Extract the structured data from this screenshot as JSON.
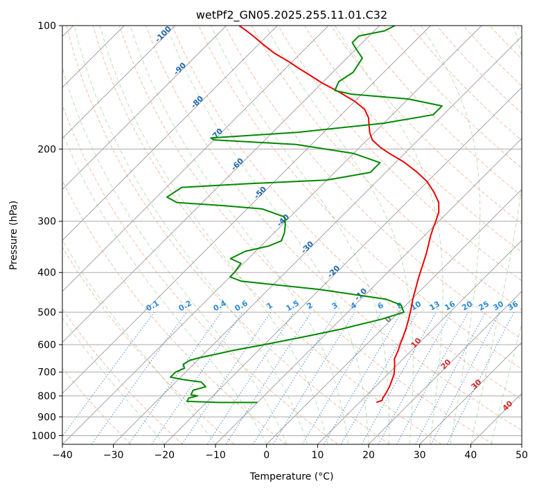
{
  "chart_data": {
    "type": "line",
    "title": "wetPf2_GN05.2025.255.11.01.C32",
    "xlabel": "Temperature (°C)",
    "ylabel": "Pressure (hPa)",
    "xlim": [
      -40,
      50
    ],
    "ylim": [
      1050,
      100
    ],
    "yscale": "log",
    "grid": true,
    "x_ticks": [
      "−40",
      "−30",
      "−20",
      "−10",
      "0",
      "10",
      "20",
      "30",
      "40",
      "50"
    ],
    "y_ticks": [
      {
        "value": 100,
        "label": "100"
      },
      {
        "value": 200,
        "label": "200"
      },
      {
        "value": 300,
        "label": "300"
      },
      {
        "value": 400,
        "label": "400"
      },
      {
        "value": 500,
        "label": "500"
      },
      {
        "value": 600,
        "label": "600"
      },
      {
        "value": 700,
        "label": "700"
      },
      {
        "value": 800,
        "label": "800"
      },
      {
        "value": 900,
        "label": "900"
      },
      {
        "value": 1000,
        "label": "1000"
      }
    ],
    "series": [
      {
        "color": "#ee0000",
        "points": [
          [
            13.3,
            830
          ],
          [
            14.0,
            820
          ],
          [
            13.7,
            810
          ],
          [
            13.4,
            790
          ],
          [
            12.8,
            760
          ],
          [
            12.2,
            740
          ],
          [
            11.3,
            710
          ],
          [
            10.4,
            690
          ],
          [
            9.4,
            670
          ],
          [
            8.3,
            650
          ],
          [
            7.4,
            620
          ],
          [
            6.6,
            600
          ],
          [
            5.9,
            580
          ],
          [
            4.7,
            550
          ],
          [
            3.3,
            520
          ],
          [
            1.7,
            490
          ],
          [
            0.2,
            465
          ],
          [
            -1.2,
            440
          ],
          [
            -2.4,
            420
          ],
          [
            -3.6,
            400
          ],
          [
            -4.8,
            380
          ],
          [
            -6.1,
            360
          ],
          [
            -7.6,
            340
          ],
          [
            -8.8,
            325
          ],
          [
            -9.9,
            310
          ],
          [
            -10.6,
            300
          ],
          [
            -11.8,
            285
          ],
          [
            -13.7,
            270
          ],
          [
            -16.6,
            255
          ],
          [
            -20.1,
            240
          ],
          [
            -23.8,
            228
          ],
          [
            -28.5,
            215
          ],
          [
            -33.0,
            205
          ],
          [
            -36.0,
            198
          ],
          [
            -39.0,
            190
          ],
          [
            -41.0,
            182
          ],
          [
            -42.5,
            175
          ],
          [
            -44.0,
            168
          ],
          [
            -46.5,
            160
          ],
          [
            -50.0,
            153
          ],
          [
            -55.0,
            145
          ],
          [
            -60.0,
            138
          ],
          [
            -64.0,
            132
          ],
          [
            -67.5,
            127
          ],
          [
            -71.0,
            122
          ],
          [
            -75.0,
            117
          ],
          [
            -78.5,
            112
          ],
          [
            -82.0,
            107
          ],
          [
            -85.0,
            103
          ],
          [
            -87.5,
            100
          ]
        ]
      },
      {
        "color": "#008800",
        "points": [
          [
            -10.0,
            830
          ],
          [
            -17.5,
            830
          ],
          [
            -24.0,
            825
          ],
          [
            -24.3,
            810
          ],
          [
            -23.0,
            800
          ],
          [
            -24.5,
            795
          ],
          [
            -25.0,
            775
          ],
          [
            -23.2,
            760
          ],
          [
            -25.0,
            740
          ],
          [
            -29.0,
            730
          ],
          [
            -32.0,
            720
          ],
          [
            -32.0,
            700
          ],
          [
            -31.0,
            685
          ],
          [
            -32.0,
            670
          ],
          [
            -31.5,
            655
          ],
          [
            -30.0,
            645
          ],
          [
            -28.0,
            635
          ],
          [
            -25.0,
            620
          ],
          [
            -20.0,
            600
          ],
          [
            -14.0,
            575
          ],
          [
            -8.0,
            550
          ],
          [
            -2.0,
            520
          ],
          [
            1.0,
            500
          ],
          [
            -1.0,
            480
          ],
          [
            -5.0,
            465
          ],
          [
            -20.0,
            440
          ],
          [
            -37.0,
            420
          ],
          [
            -40.0,
            410
          ],
          [
            -40.0,
            400
          ],
          [
            -40.5,
            380
          ],
          [
            -43.5,
            370
          ],
          [
            -42.0,
            355
          ],
          [
            -38.5,
            345
          ],
          [
            -37.0,
            335
          ],
          [
            -38.0,
            320
          ],
          [
            -39.5,
            305
          ],
          [
            -41.0,
            293
          ],
          [
            -47.0,
            280
          ],
          [
            -55.0,
            275
          ],
          [
            -65.0,
            270
          ],
          [
            -68.0,
            262
          ],
          [
            -67.0,
            248
          ],
          [
            -55.0,
            243
          ],
          [
            -40.0,
            238
          ],
          [
            -33.0,
            228
          ],
          [
            -33.0,
            216
          ],
          [
            -40.0,
            205
          ],
          [
            -53.0,
            195
          ],
          [
            -70.0,
            190
          ],
          [
            -71.0,
            188
          ],
          [
            -55.0,
            182
          ],
          [
            -40.0,
            173
          ],
          [
            -32.0,
            165
          ],
          [
            -32.0,
            157
          ],
          [
            -40.0,
            151
          ],
          [
            -52.0,
            147
          ],
          [
            -56.0,
            144
          ],
          [
            -57.0,
            137
          ],
          [
            -56.0,
            130
          ],
          [
            -57.0,
            120
          ],
          [
            -60.0,
            114
          ],
          [
            -62.0,
            110
          ],
          [
            -62.0,
            106
          ],
          [
            -58.0,
            103
          ],
          [
            -57.0,
            100
          ]
        ]
      }
    ],
    "dry_adiabat_labels": [
      "-100",
      "-90",
      "-80",
      "-70",
      "-60",
      "-50",
      "-40",
      "-30",
      "-20",
      "-10"
    ],
    "mixing_ratio_labels": [
      "0.1",
      "0.2",
      "0.4",
      "0.6",
      "1",
      "1.5",
      "2",
      "3",
      "4",
      "6",
      "8",
      "10",
      "13",
      "16",
      "20",
      "25",
      "30",
      "36"
    ],
    "moist_adiabat_labels": [
      "0",
      "10",
      "20",
      "30",
      "40"
    ]
  }
}
